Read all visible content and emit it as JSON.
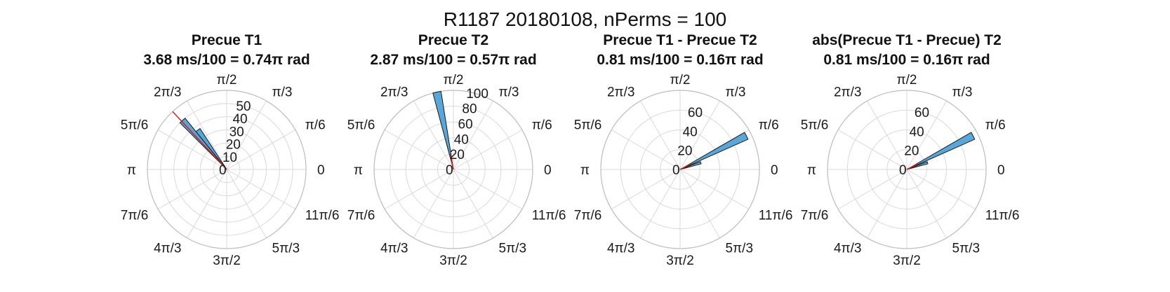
{
  "figure_title": "R1187 20180108, nPerms = 100",
  "colors": {
    "bar_fill": "#5aa6d9",
    "bar_edge": "#1a1a1a",
    "mean_line": "#cc2222",
    "grid": "#d9d9d9",
    "outer_ring": "#bdbdbd"
  },
  "theta_tick_labels": [
    "0",
    "π/6",
    "π/3",
    "π/2",
    "2π/3",
    "5π/6",
    "π",
    "7π/6",
    "4π/3",
    "3π/2",
    "5π/3",
    "11π/6"
  ],
  "chart_data": [
    {
      "type": "polar-histogram",
      "title_line1": "Precue T1",
      "title_line2": "3.68 ms/100 = 0.74π rad",
      "rlim": [
        0,
        60
      ],
      "r_ticks": [
        0,
        10,
        20,
        30,
        40,
        50
      ],
      "bars": [
        {
          "theta_start_deg": 129,
          "theta_end_deg": 135,
          "count": 50
        },
        {
          "theta_start_deg": 123,
          "theta_end_deg": 129,
          "count": 37
        }
      ],
      "mean_angle_deg": 133,
      "mean_length": 60
    },
    {
      "type": "polar-histogram",
      "title_line1": "Precue T2",
      "title_line2": "2.87 ms/100 = 0.57π rad",
      "rlim": [
        0,
        100
      ],
      "r_ticks": [
        0,
        20,
        40,
        60,
        80,
        100
      ],
      "bars": [
        {
          "theta_start_deg": 99,
          "theta_end_deg": 105,
          "count": 100
        }
      ],
      "mean_angle_deg": 102,
      "mean_length": 20
    },
    {
      "type": "polar-histogram",
      "title_line1": "Precue T1 - Precue T2",
      "title_line2": "0.81 ms/100 = 0.16π rad",
      "rlim": [
        0,
        80
      ],
      "r_ticks": [
        0,
        20,
        40,
        60
      ],
      "bars": [
        {
          "theta_start_deg": 24,
          "theta_end_deg": 30,
          "count": 75
        },
        {
          "theta_start_deg": 15,
          "theta_end_deg": 21,
          "count": 22
        }
      ],
      "mean_angle_deg": 27,
      "mean_length": 12
    },
    {
      "type": "polar-histogram",
      "title_line1": "abs(Precue T1 - Precue) T2",
      "title_line2": "0.81 ms/100 = 0.16π rad",
      "rlim": [
        0,
        80
      ],
      "r_ticks": [
        0,
        20,
        40,
        60
      ],
      "bars": [
        {
          "theta_start_deg": 24,
          "theta_end_deg": 30,
          "count": 75
        },
        {
          "theta_start_deg": 15,
          "theta_end_deg": 21,
          "count": 22
        }
      ],
      "mean_angle_deg": 27,
      "mean_length": 12
    }
  ]
}
